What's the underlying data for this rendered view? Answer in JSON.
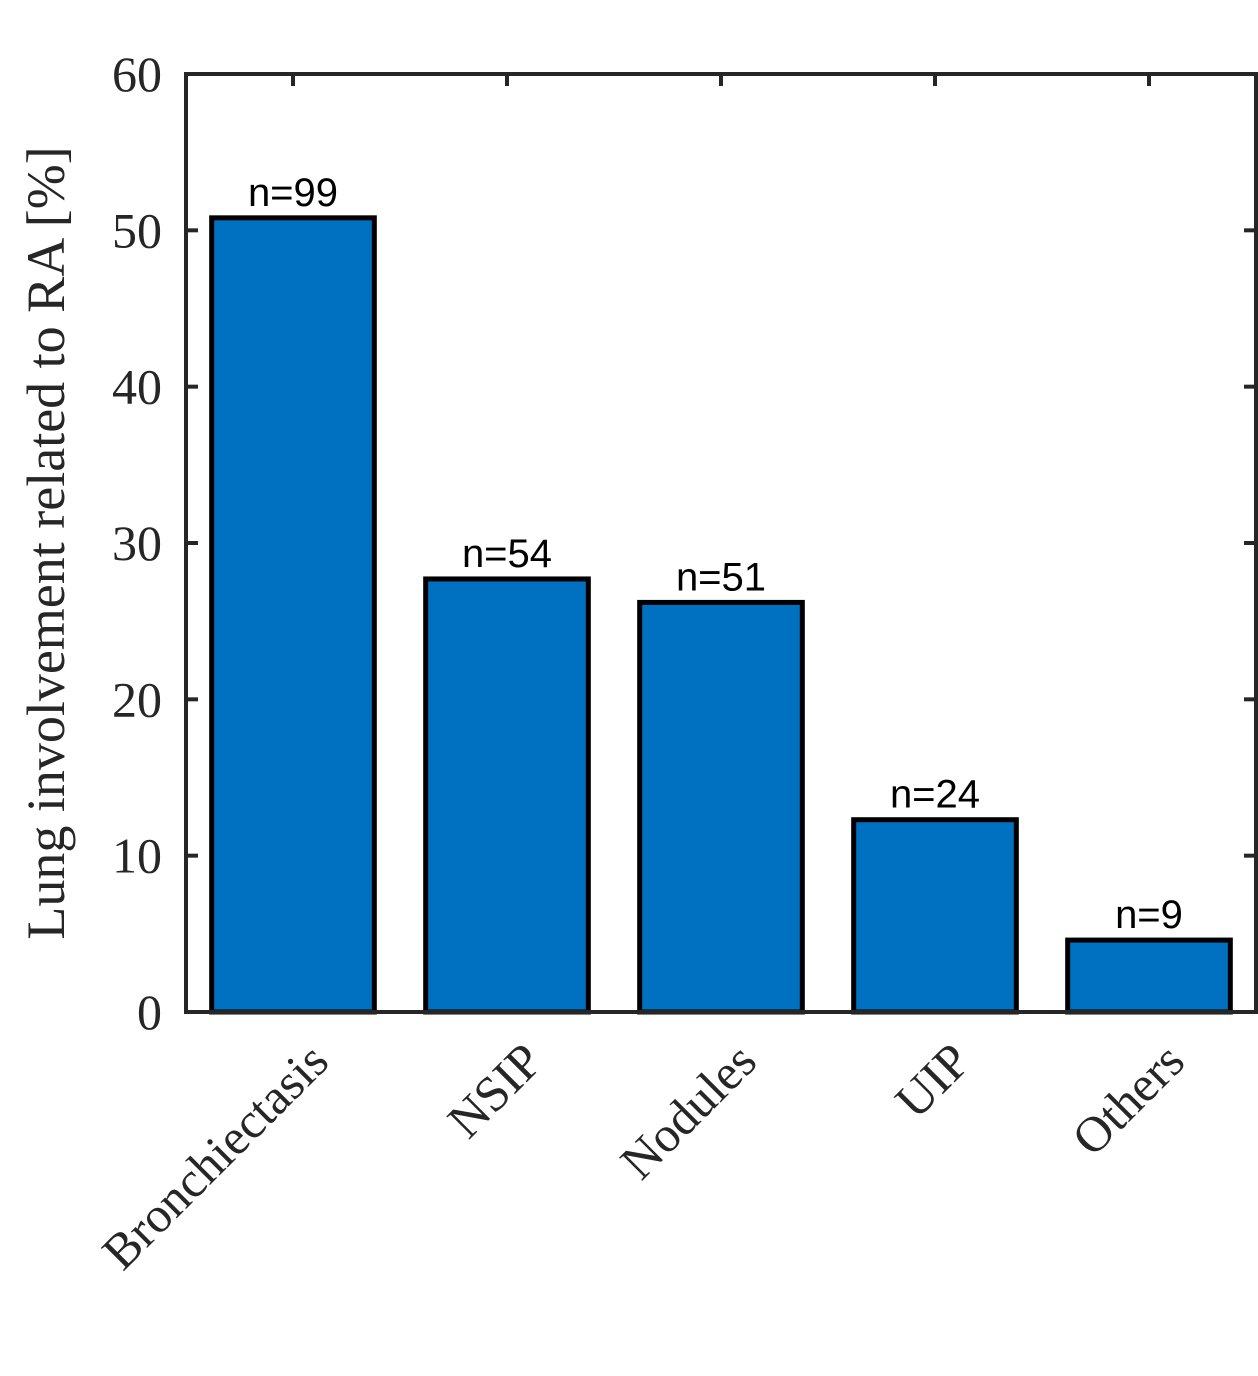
{
  "chart_data": {
    "type": "bar",
    "categories": [
      "Bronchiectasis",
      "NSIP",
      "Nodules",
      "UIP",
      "Others"
    ],
    "values": [
      50.8,
      27.7,
      26.2,
      12.3,
      4.6
    ],
    "data_labels": [
      "n=99",
      "n=54",
      "n=51",
      "n=24",
      "n=9"
    ],
    "title": "",
    "xlabel": "",
    "ylabel": "Lung involvement related to RA [%]",
    "ylim": [
      0,
      60
    ],
    "yticks": [
      0,
      10,
      20,
      30,
      40,
      50,
      60
    ],
    "grid": false,
    "legend": "none",
    "colors": {
      "bar_fill": "#0070C0",
      "bar_edge": "#000000",
      "axis": "#262626"
    }
  }
}
